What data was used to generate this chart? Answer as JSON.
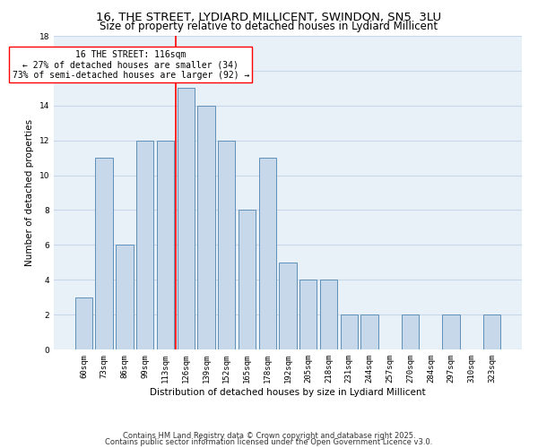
{
  "title1": "16, THE STREET, LYDIARD MILLICENT, SWINDON, SN5  3LU",
  "title2": "Size of property relative to detached houses in Lydiard Millicent",
  "xlabel": "Distribution of detached houses by size in Lydiard Millicent",
  "ylabel": "Number of detached properties",
  "bar_labels": [
    "60sqm",
    "73sqm",
    "86sqm",
    "99sqm",
    "113sqm",
    "126sqm",
    "139sqm",
    "152sqm",
    "165sqm",
    "178sqm",
    "192sqm",
    "205sqm",
    "218sqm",
    "231sqm",
    "244sqm",
    "257sqm",
    "270sqm",
    "284sqm",
    "297sqm",
    "310sqm",
    "323sqm"
  ],
  "bar_values": [
    3,
    11,
    6,
    12,
    12,
    15,
    14,
    12,
    8,
    11,
    5,
    4,
    4,
    2,
    2,
    0,
    2,
    0,
    2,
    0,
    2
  ],
  "bar_color": "#c8d8eb",
  "bar_edge_color": "#6090b8",
  "annotation_text": "16 THE STREET: 116sqm\n← 27% of detached houses are smaller (34)\n73% of semi-detached houses are larger (92) →",
  "annotation_box_color": "white",
  "annotation_box_edge_color": "red",
  "vline_color": "red",
  "vline_x": 4.5,
  "footnote1": "Contains HM Land Registry data © Crown copyright and database right 2025.",
  "footnote2": "Contains public sector information licensed under the Open Government Licence v3.0.",
  "ylim": [
    0,
    18
  ],
  "yticks": [
    0,
    2,
    4,
    6,
    8,
    10,
    12,
    14,
    16,
    18
  ],
  "grid_color": "#c8d8e8",
  "bg_color": "#e8f0f8",
  "title_fontsize": 9.5,
  "subtitle_fontsize": 8.5,
  "axis_label_fontsize": 7.5,
  "tick_fontsize": 6.5,
  "annotation_fontsize": 7,
  "footnote_fontsize": 6
}
